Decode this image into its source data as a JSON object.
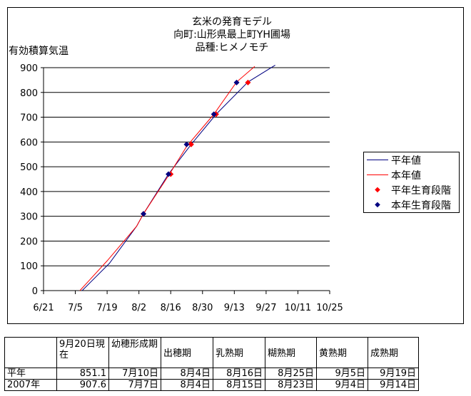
{
  "chart_data": {
    "type": "line",
    "title_lines": [
      "玄米の発育モデル",
      "向町:山形県最上町YH圃場",
      "品種:ヒメノモチ"
    ],
    "ylabel": "有効積算気温",
    "xlabel": "",
    "ylim": [
      0,
      900
    ],
    "yticks": [
      0,
      100,
      200,
      300,
      400,
      500,
      600,
      700,
      800,
      900
    ],
    "xlim": [
      "6/21",
      "10/25"
    ],
    "xticks": [
      "6/21",
      "7/5",
      "7/19",
      "8/2",
      "8/16",
      "8/30",
      "9/13",
      "9/27",
      "10/11",
      "10/25"
    ],
    "grid": "horizontal",
    "legend_position": "right",
    "series": [
      {
        "name": "平年値",
        "kind": "line",
        "color": "#000080",
        "points": [
          [
            "7/8",
            0
          ],
          [
            "7/20",
            110
          ],
          [
            "8/1",
            260
          ],
          [
            "8/4",
            310
          ],
          [
            "8/15",
            470
          ],
          [
            "8/25",
            590
          ],
          [
            "9/5",
            712
          ],
          [
            "9/19",
            842
          ],
          [
            "10/1",
            910
          ]
        ]
      },
      {
        "name": "本年値",
        "kind": "line",
        "color": "#ff0000",
        "points": [
          [
            "7/7",
            0
          ],
          [
            "7/19",
            120
          ],
          [
            "8/1",
            260
          ],
          [
            "8/4",
            310
          ],
          [
            "8/16",
            478
          ],
          [
            "8/23",
            582
          ],
          [
            "9/4",
            712
          ],
          [
            "9/14",
            842
          ],
          [
            "9/22",
            905
          ]
        ]
      },
      {
        "name": "平年生育段階",
        "kind": "marker",
        "color": "#ff0000",
        "points": [
          [
            "8/4",
            310
          ],
          [
            "8/16",
            470
          ],
          [
            "8/25",
            590
          ],
          [
            "9/5",
            712
          ],
          [
            "9/19",
            840
          ]
        ]
      },
      {
        "name": "本年生育段階",
        "kind": "marker",
        "color": "#000080",
        "points": [
          [
            "8/4",
            310
          ],
          [
            "8/15",
            470
          ],
          [
            "8/23",
            590
          ],
          [
            "9/4",
            712
          ],
          [
            "9/14",
            840
          ]
        ]
      }
    ]
  },
  "table": {
    "header": [
      "",
      "9月20日現在",
      "幼穂形成期",
      "出穂期",
      "乳熟期",
      "糊熟期",
      "黄熟期",
      "成熟期"
    ],
    "rows": [
      [
        "平年",
        "851.1",
        "7月10日",
        "8月4日",
        "8月16日",
        "8月25日",
        "9月5日",
        "9月19日"
      ],
      [
        "2007年",
        "907.6",
        "7月7日",
        "8月4日",
        "8月15日",
        "8月23日",
        "9月4日",
        "9月14日"
      ]
    ]
  }
}
